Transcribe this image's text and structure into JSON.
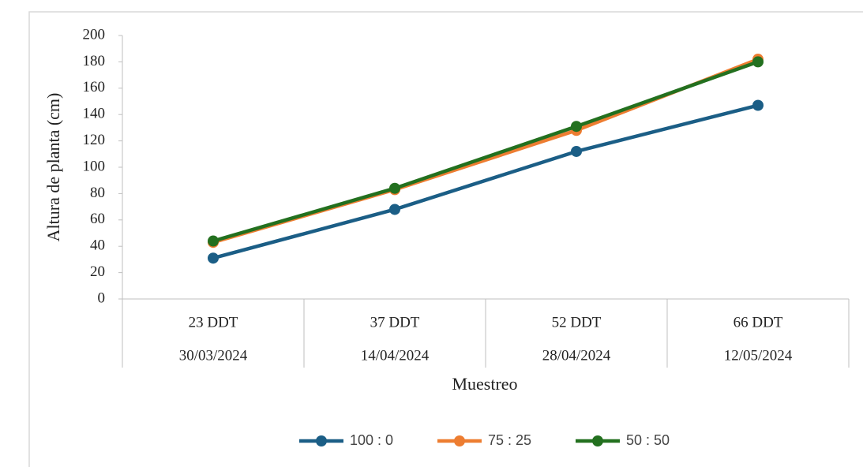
{
  "chart_data": {
    "type": "line",
    "y_label": "Altura de planta (cm)",
    "x_label": "Muestreo",
    "categories": [
      "23 DDT",
      "37 DDT",
      "52 DDT",
      "66 DDT"
    ],
    "dates": [
      "30/03/2024",
      "14/04/2024",
      "28/04/2024",
      "12/05/2024"
    ],
    "series": [
      {
        "name": "100 : 0",
        "color": "#1b5e86",
        "values": [
          31,
          68,
          112,
          147
        ]
      },
      {
        "name": "75 : 25",
        "color": "#ed7d31",
        "values": [
          43,
          83,
          128,
          182
        ]
      },
      {
        "name": "50 : 50",
        "color": "#23701f",
        "values": [
          44,
          84,
          131,
          180
        ]
      }
    ],
    "ylim": [
      0,
      200
    ],
    "yticks": [
      0,
      20,
      40,
      60,
      80,
      100,
      120,
      140,
      160,
      180,
      200
    ],
    "grid": false,
    "legend": "bottom"
  }
}
